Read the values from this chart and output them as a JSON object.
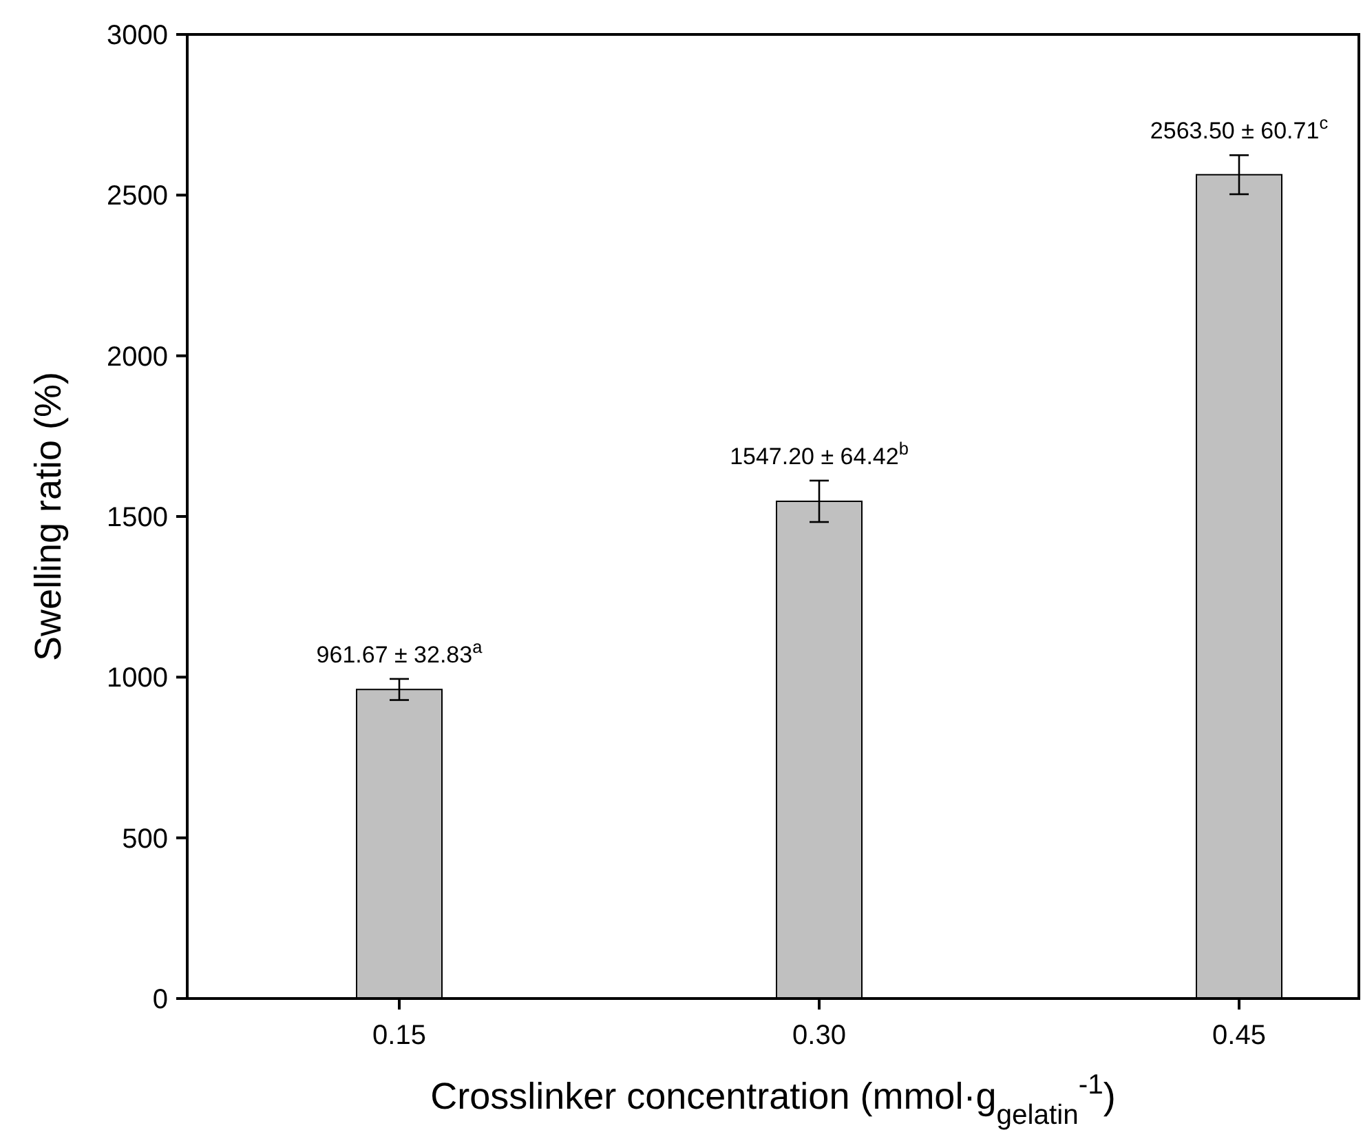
{
  "chart_data": {
    "type": "bar",
    "xlabel": "Crosslinker concentration (mmol·g$_{gelatin}$$^{-1}$)",
    "ylabel": "Swelling ratio (%)",
    "categories": [
      "0.15",
      "0.30",
      "0.45"
    ],
    "values": [
      961.67,
      1547.2,
      2563.5
    ],
    "errors": [
      32.83,
      64.42,
      60.71
    ],
    "value_labels": [
      "961.67 ± 32.83$^{a}$",
      "1547.20 ± 64.42$^{b}$",
      "2563.50 ± 60.71$^{c}$"
    ],
    "color": "#c0c0c0",
    "ylim": [
      0,
      3000
    ],
    "yticks": [
      0,
      500,
      1000,
      1500,
      2000,
      2500,
      3000
    ],
    "grid": false
  }
}
